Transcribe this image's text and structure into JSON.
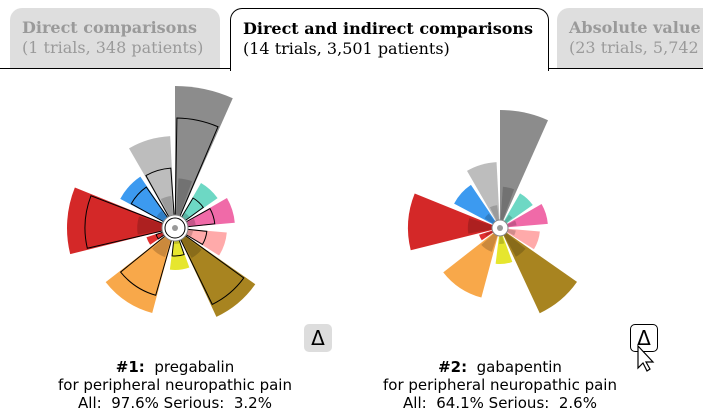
{
  "tabs": [
    {
      "title": "Direct comparisons",
      "subtitle": "(1 trials, 348 patients)"
    },
    {
      "title": "Direct and indirect comparisons",
      "subtitle": "(14 trials, 3,501 patients)"
    },
    {
      "title": "Absolute value",
      "subtitle": "(23 trials, 5,742"
    }
  ],
  "cards": [
    {
      "rank": "#1:",
      "drug": "pregabalin",
      "condition": "for peripheral neuropathic pain",
      "all_label": "All:",
      "all_value": "97.6%",
      "serious_label": "Serious:",
      "serious_value": "3.2%",
      "button": "Δ"
    },
    {
      "rank": "#2:",
      "drug": "gabapentin",
      "condition": "for peripheral neuropathic pain",
      "all_label": "All:",
      "all_value": "64.1%",
      "serious_label": "Serious:",
      "serious_value": "2.6%",
      "button": "Δ"
    }
  ]
}
